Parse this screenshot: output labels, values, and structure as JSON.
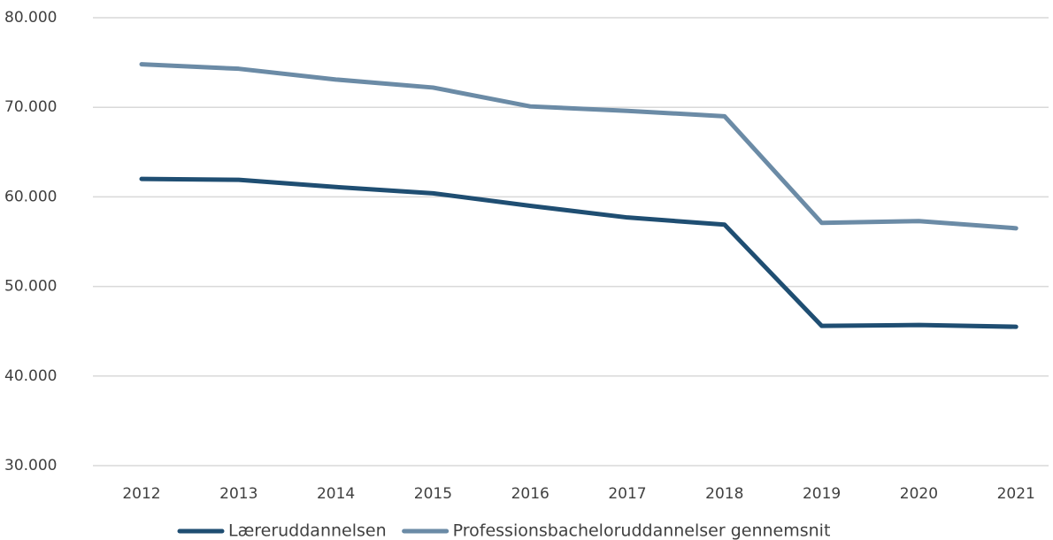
{
  "chart_data": {
    "type": "line",
    "categories": [
      "2012",
      "2013",
      "2014",
      "2015",
      "2016",
      "2017",
      "2018",
      "2019",
      "2020",
      "2021"
    ],
    "series": [
      {
        "name": "Læreruddannelsen",
        "color": "#1f4e72",
        "values": [
          62000,
          61900,
          61100,
          60400,
          59000,
          57700,
          56900,
          45600,
          45700,
          45500
        ]
      },
      {
        "name": "Professionsbacheloruddannelser gennemsnit",
        "color": "#6b8ba6",
        "values": [
          74800,
          74300,
          73100,
          72200,
          70100,
          69600,
          69000,
          57100,
          57300,
          56500
        ]
      }
    ],
    "ylim": [
      30000,
      80000
    ],
    "yticks": [
      {
        "value": 30000,
        "label": "30.000"
      },
      {
        "value": 40000,
        "label": "40.000"
      },
      {
        "value": 50000,
        "label": "50.000"
      },
      {
        "value": 60000,
        "label": "60.000"
      },
      {
        "value": 70000,
        "label": "70.000"
      },
      {
        "value": 80000,
        "label": "80.000"
      }
    ],
    "grid": true,
    "legend": "bottom"
  }
}
